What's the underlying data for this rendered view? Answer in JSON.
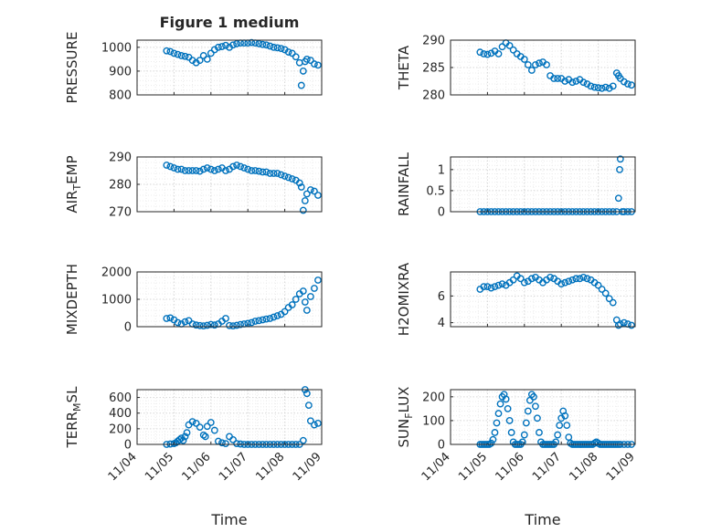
{
  "figure": {
    "title": "Figure 1 medium",
    "xlabel": "Time",
    "date_ticks": [
      "11/04",
      "11/05",
      "11/06",
      "11/07",
      "11/08",
      "11/09"
    ],
    "marker_color": "#0072BD"
  },
  "chart_data": [
    {
      "type": "scatter",
      "title": "Figure 1 medium",
      "ylabel": "PRESSURE",
      "ylabel_sub": "",
      "ylabel_tail": "",
      "xlim": [
        "11/04 00:00",
        "11/09 00:00"
      ],
      "ylim": [
        800,
        1030
      ],
      "yticks": [
        800,
        900,
        1000
      ],
      "grid": true,
      "x_days": [
        4.8,
        4.9,
        5.0,
        5.1,
        5.2,
        5.3,
        5.4,
        5.5,
        5.6,
        5.7,
        5.8,
        5.9,
        6.0,
        6.1,
        6.2,
        6.3,
        6.4,
        6.5,
        6.6,
        6.7,
        6.8,
        6.9,
        7.0,
        7.1,
        7.2,
        7.3,
        7.4,
        7.5,
        7.6,
        7.7,
        7.8,
        7.9,
        8.0,
        8.1,
        8.2,
        8.3,
        8.4,
        8.45,
        8.5,
        8.55,
        8.6,
        8.7,
        8.8,
        8.9
      ],
      "y": [
        985,
        982,
        975,
        970,
        965,
        962,
        958,
        945,
        935,
        945,
        965,
        950,
        975,
        990,
        1000,
        1003,
        1008,
        1000,
        1010,
        1015,
        1018,
        1018,
        1018,
        1020,
        1018,
        1015,
        1012,
        1010,
        1005,
        1000,
        998,
        995,
        990,
        980,
        975,
        960,
        935,
        840,
        900,
        940,
        950,
        945,
        930,
        925
      ]
    },
    {
      "type": "scatter",
      "ylabel": "THETA",
      "ylabel_sub": "",
      "ylabel_tail": "",
      "xlim": [
        "11/04 00:00",
        "11/09 00:00"
      ],
      "ylim": [
        280,
        290
      ],
      "yticks": [
        280,
        285,
        290
      ],
      "grid": true,
      "x_days": [
        4.8,
        4.9,
        5.0,
        5.1,
        5.2,
        5.3,
        5.4,
        5.5,
        5.6,
        5.7,
        5.8,
        5.9,
        6.0,
        6.1,
        6.2,
        6.3,
        6.4,
        6.5,
        6.6,
        6.7,
        6.8,
        6.9,
        7.0,
        7.1,
        7.2,
        7.3,
        7.4,
        7.5,
        7.6,
        7.7,
        7.8,
        7.9,
        8.0,
        8.1,
        8.2,
        8.3,
        8.4,
        8.5,
        8.55,
        8.6,
        8.7,
        8.8,
        8.9
      ],
      "y": [
        287.8,
        287.5,
        287.4,
        287.6,
        288,
        287.5,
        288.8,
        289.5,
        289,
        288.2,
        287.5,
        287,
        286.5,
        285.5,
        284.5,
        285.5,
        285.8,
        286,
        285.5,
        283.5,
        283,
        283,
        283,
        282.5,
        282.8,
        282.3,
        282.5,
        282.8,
        282.3,
        282,
        281.6,
        281.4,
        281.3,
        281.2,
        281.4,
        281.2,
        281.6,
        284,
        283.5,
        283,
        282.4,
        282,
        281.8
      ]
    },
    {
      "type": "scatter",
      "ylabel": "AIR",
      "ylabel_sub": "T",
      "ylabel_tail": "EMP",
      "xlim": [
        "11/04 00:00",
        "11/09 00:00"
      ],
      "ylim": [
        270,
        290
      ],
      "yticks": [
        270,
        280,
        290
      ],
      "grid": true,
      "x_days": [
        4.8,
        4.9,
        5.0,
        5.1,
        5.2,
        5.3,
        5.4,
        5.5,
        5.6,
        5.7,
        5.8,
        5.9,
        6.0,
        6.1,
        6.2,
        6.3,
        6.4,
        6.5,
        6.6,
        6.7,
        6.8,
        6.9,
        7.0,
        7.1,
        7.2,
        7.3,
        7.4,
        7.5,
        7.6,
        7.7,
        7.8,
        7.9,
        8.0,
        8.1,
        8.2,
        8.3,
        8.4,
        8.45,
        8.5,
        8.55,
        8.6,
        8.7,
        8.8,
        8.9
      ],
      "y": [
        287,
        286.5,
        286,
        285.5,
        285.5,
        285,
        285,
        285,
        285,
        284.8,
        285.5,
        286,
        285.5,
        285,
        285.5,
        286,
        285,
        285.5,
        286.5,
        287,
        286.5,
        286,
        285.5,
        285,
        285,
        284.8,
        284.5,
        284.5,
        284,
        284,
        284,
        283.5,
        283,
        282.5,
        282,
        281.5,
        280.5,
        279,
        270.5,
        274,
        276.5,
        278,
        277.5,
        276
      ]
    },
    {
      "type": "scatter",
      "ylabel": "RAINFALL",
      "ylabel_sub": "",
      "ylabel_tail": "",
      "xlim": [
        "11/04 00:00",
        "11/09 00:00"
      ],
      "ylim": [
        0,
        1.3
      ],
      "yticks": [
        0,
        0.5,
        1
      ],
      "grid": true,
      "x_days": [
        4.8,
        4.9,
        5.0,
        5.1,
        5.2,
        5.3,
        5.4,
        5.5,
        5.6,
        5.7,
        5.8,
        5.9,
        6.0,
        6.1,
        6.2,
        6.3,
        6.4,
        6.5,
        6.6,
        6.7,
        6.8,
        6.9,
        7.0,
        7.1,
        7.2,
        7.3,
        7.4,
        7.5,
        7.6,
        7.7,
        7.8,
        7.9,
        8.0,
        8.1,
        8.2,
        8.3,
        8.4,
        8.5,
        8.55,
        8.58,
        8.6,
        8.65,
        8.7,
        8.8,
        8.9
      ],
      "y": [
        0,
        0,
        0,
        0,
        0,
        0,
        0,
        0,
        0,
        0,
        0,
        0,
        0,
        0,
        0,
        0,
        0,
        0,
        0,
        0,
        0,
        0,
        0,
        0,
        0,
        0,
        0,
        0,
        0,
        0,
        0,
        0,
        0,
        0,
        0,
        0,
        0,
        0,
        0.32,
        1,
        1.25,
        0,
        0,
        0,
        0
      ]
    },
    {
      "type": "scatter",
      "ylabel": "MIXDEPTH",
      "ylabel_sub": "",
      "ylabel_tail": "",
      "xlim": [
        "11/04 00:00",
        "11/09 00:00"
      ],
      "ylim": [
        0,
        2000
      ],
      "yticks": [
        0,
        1000,
        2000
      ],
      "grid": true,
      "x_days": [
        4.8,
        4.9,
        5.0,
        5.1,
        5.2,
        5.3,
        5.4,
        5.5,
        5.6,
        5.7,
        5.8,
        5.9,
        6.0,
        6.1,
        6.2,
        6.3,
        6.4,
        6.5,
        6.6,
        6.7,
        6.8,
        6.9,
        7.0,
        7.1,
        7.2,
        7.3,
        7.4,
        7.5,
        7.6,
        7.7,
        7.8,
        7.9,
        8.0,
        8.1,
        8.2,
        8.3,
        8.4,
        8.5,
        8.55,
        8.6,
        8.7,
        8.8,
        8.9
      ],
      "y": [
        300,
        320,
        250,
        150,
        100,
        180,
        220,
        100,
        60,
        40,
        30,
        50,
        80,
        60,
        100,
        200,
        300,
        40,
        30,
        50,
        80,
        100,
        120,
        150,
        200,
        220,
        250,
        280,
        300,
        350,
        400,
        450,
        550,
        700,
        800,
        1000,
        1200,
        1300,
        900,
        600,
        1100,
        1400,
        1700
      ]
    },
    {
      "type": "scatter",
      "ylabel": "H2OMIXRA",
      "ylabel_sub": "",
      "ylabel_tail": "",
      "xlim": [
        "11/04 00:00",
        "11/09 00:00"
      ],
      "ylim": [
        3.7,
        7.8
      ],
      "yticks": [
        4,
        6
      ],
      "grid": true,
      "x_days": [
        4.8,
        4.9,
        5.0,
        5.1,
        5.2,
        5.3,
        5.4,
        5.5,
        5.6,
        5.7,
        5.8,
        5.9,
        6.0,
        6.1,
        6.2,
        6.3,
        6.4,
        6.5,
        6.6,
        6.7,
        6.8,
        6.9,
        7.0,
        7.1,
        7.2,
        7.3,
        7.4,
        7.5,
        7.6,
        7.7,
        7.8,
        7.9,
        8.0,
        8.1,
        8.2,
        8.3,
        8.4,
        8.5,
        8.55,
        8.6,
        8.7,
        8.8,
        8.9
      ],
      "y": [
        6.5,
        6.7,
        6.7,
        6.6,
        6.7,
        6.8,
        6.9,
        6.8,
        7.0,
        7.2,
        7.5,
        7.3,
        7.0,
        7.1,
        7.3,
        7.4,
        7.2,
        7.0,
        7.2,
        7.4,
        7.3,
        7.1,
        6.9,
        7.0,
        7.1,
        7.2,
        7.3,
        7.3,
        7.4,
        7.3,
        7.2,
        7.0,
        6.8,
        6.5,
        6.2,
        5.8,
        5.5,
        4.2,
        3.8,
        3.9,
        4.0,
        3.9,
        3.8
      ]
    },
    {
      "type": "scatter",
      "ylabel": "TERR",
      "ylabel_sub": "M",
      "ylabel_tail": "SL",
      "xlim": [
        "11/04 00:00",
        "11/09 00:00"
      ],
      "ylim": [
        0,
        700
      ],
      "yticks": [
        0,
        200,
        400,
        600
      ],
      "grid": true,
      "x_days": [
        4.8,
        4.9,
        5.0,
        5.05,
        5.1,
        5.15,
        5.2,
        5.25,
        5.3,
        5.35,
        5.4,
        5.5,
        5.6,
        5.7,
        5.8,
        5.85,
        5.9,
        6.0,
        6.1,
        6.2,
        6.3,
        6.4,
        6.5,
        6.6,
        6.7,
        6.8,
        6.9,
        7.0,
        7.1,
        7.2,
        7.3,
        7.4,
        7.5,
        7.6,
        7.7,
        7.8,
        7.9,
        8.0,
        8.1,
        8.2,
        8.3,
        8.4,
        8.5,
        8.55,
        8.6,
        8.65,
        8.7,
        8.8,
        8.9
      ],
      "y": [
        0,
        5,
        10,
        20,
        40,
        60,
        80,
        50,
        100,
        150,
        250,
        290,
        270,
        220,
        120,
        100,
        230,
        280,
        180,
        40,
        20,
        10,
        100,
        60,
        10,
        5,
        0,
        0,
        0,
        0,
        0,
        0,
        0,
        0,
        0,
        0,
        0,
        0,
        0,
        0,
        0,
        0,
        50,
        700,
        650,
        500,
        300,
        250,
        270
      ]
    },
    {
      "type": "scatter",
      "ylabel": "SUN",
      "ylabel_sub": "F",
      "ylabel_tail": "LUX",
      "xlim": [
        "11/04 00:00",
        "11/09 00:00"
      ],
      "ylim": [
        0,
        230
      ],
      "yticks": [
        0,
        100,
        200
      ],
      "grid": true,
      "x_days": [
        4.8,
        4.85,
        4.9,
        4.95,
        5.0,
        5.05,
        5.1,
        5.15,
        5.2,
        5.25,
        5.3,
        5.35,
        5.4,
        5.45,
        5.5,
        5.55,
        5.6,
        5.65,
        5.7,
        5.75,
        5.8,
        5.85,
        5.9,
        5.95,
        6.0,
        6.05,
        6.1,
        6.15,
        6.2,
        6.25,
        6.3,
        6.35,
        6.4,
        6.45,
        6.5,
        6.55,
        6.6,
        6.65,
        6.7,
        6.75,
        6.8,
        6.85,
        6.9,
        6.95,
        7.0,
        7.05,
        7.1,
        7.15,
        7.2,
        7.25,
        7.3,
        7.35,
        7.4,
        7.45,
        7.5,
        7.55,
        7.6,
        7.65,
        7.7,
        7.75,
        7.8,
        7.85,
        7.9,
        7.95,
        8.0,
        8.05,
        8.1,
        8.15,
        8.2,
        8.25,
        8.3,
        8.35,
        8.4,
        8.45,
        8.5,
        8.55,
        8.6,
        8.7,
        8.8,
        8.9
      ],
      "y": [
        0,
        0,
        0,
        0,
        0,
        0,
        5,
        20,
        50,
        90,
        130,
        170,
        200,
        210,
        190,
        150,
        100,
        50,
        10,
        0,
        0,
        0,
        0,
        10,
        40,
        90,
        140,
        185,
        210,
        200,
        160,
        110,
        50,
        10,
        0,
        0,
        0,
        0,
        0,
        0,
        0,
        10,
        40,
        80,
        110,
        140,
        120,
        80,
        30,
        5,
        0,
        0,
        0,
        0,
        0,
        0,
        0,
        0,
        0,
        0,
        0,
        0,
        5,
        10,
        5,
        0,
        0,
        0,
        0,
        0,
        0,
        0,
        0,
        0,
        0,
        0,
        0,
        0,
        0,
        0
      ]
    }
  ]
}
